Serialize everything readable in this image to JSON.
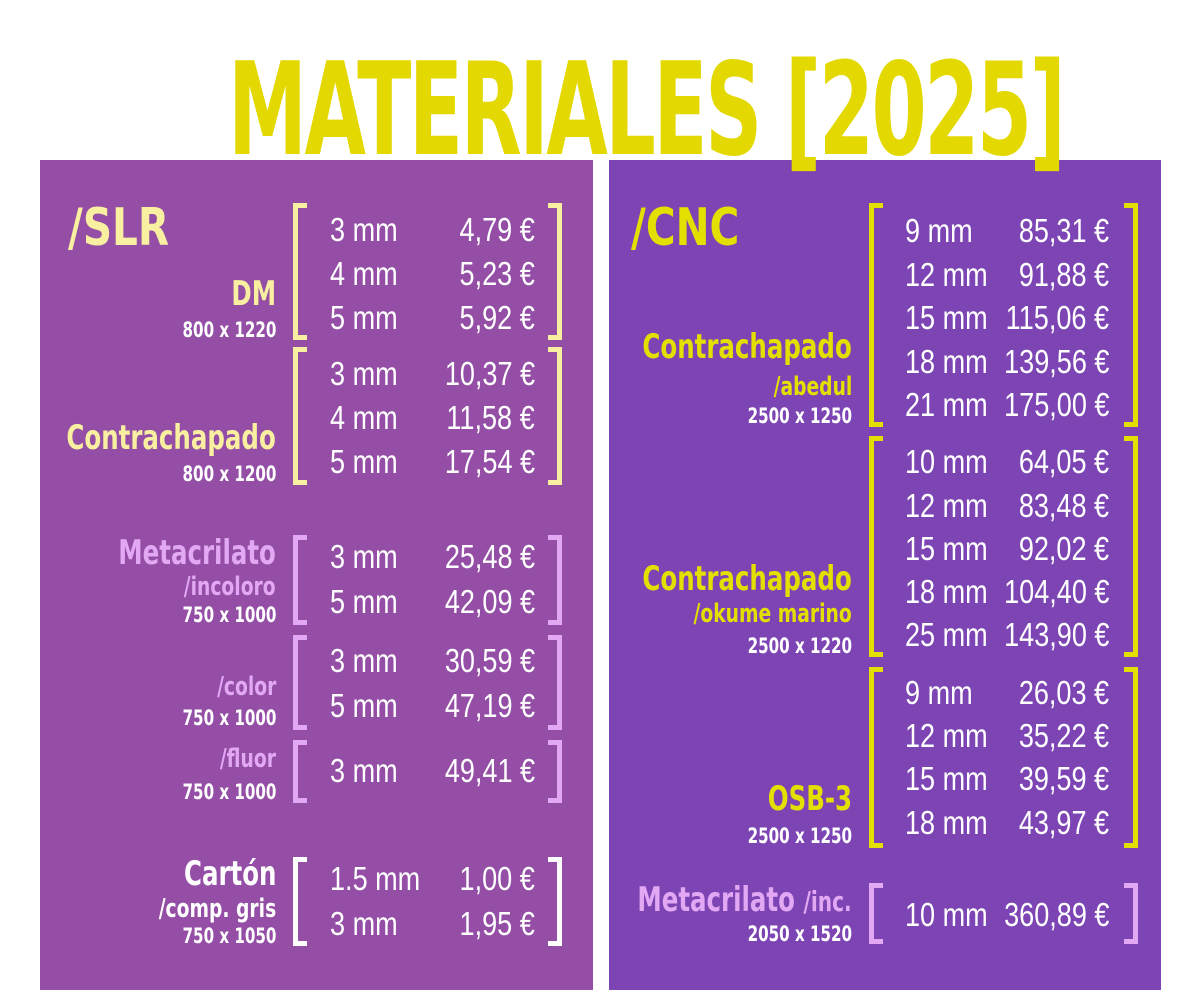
{
  "title": "MATERIALES [2025]",
  "colors": {
    "title": "#e3d900",
    "slr_bg": "#944ea6",
    "cnc_bg": "#7d45b4",
    "cream": "#f8f0a0",
    "lilac": "#e2a8f3",
    "yellow": "#e3e000",
    "white": "#ffffff"
  },
  "slr": {
    "heading": "/SLR",
    "groups": [
      {
        "name": "DM",
        "sub": "",
        "dims": "800 x 1220",
        "color": "cream",
        "rows": [
          {
            "mm": "3 mm",
            "price": "4,79 €"
          },
          {
            "mm": "4 mm",
            "price": "5,23 €"
          },
          {
            "mm": "5 mm",
            "price": "5,92 €"
          }
        ]
      },
      {
        "name": "Contrachapado",
        "sub": "",
        "dims": "800 x 1200",
        "color": "cream",
        "rows": [
          {
            "mm": "3 mm",
            "price": "10,37 €"
          },
          {
            "mm": "4 mm",
            "price": "11,58 €"
          },
          {
            "mm": "5 mm",
            "price": "17,54 €"
          }
        ]
      },
      {
        "name": "Metacrilato",
        "sub": "/incoloro",
        "dims": "750 x 1000",
        "color": "lilac",
        "rows": [
          {
            "mm": "3 mm",
            "price": "25,48 €"
          },
          {
            "mm": "5 mm",
            "price": "42,09 €"
          }
        ]
      },
      {
        "name": "",
        "sub": "/color",
        "dims": "750 x 1000",
        "color": "lilac",
        "rows": [
          {
            "mm": "3 mm",
            "price": "30,59 €"
          },
          {
            "mm": "5 mm",
            "price": "47,19 €"
          }
        ]
      },
      {
        "name": "",
        "sub": "/fluor",
        "dims": "750 x 1000",
        "color": "lilac",
        "rows": [
          {
            "mm": "3 mm",
            "price": "49,41 €"
          }
        ]
      },
      {
        "name": "Cartón",
        "sub": "/comp. gris",
        "dims": "750 x 1050",
        "color": "white",
        "rows": [
          {
            "mm": "1.5 mm",
            "price": "1,00 €"
          },
          {
            "mm": "3 mm",
            "price": "1,95 €"
          }
        ]
      }
    ]
  },
  "cnc": {
    "heading": "/CNC",
    "groups": [
      {
        "name": "Contrachapado",
        "sub": "/abedul",
        "dims": "2500 x 1250",
        "color": "yellow",
        "rows": [
          {
            "mm": "9 mm",
            "price": "85,31 €"
          },
          {
            "mm": "12 mm",
            "price": "91,88 €"
          },
          {
            "mm": "15 mm",
            "price": "115,06 €"
          },
          {
            "mm": "18 mm",
            "price": "139,56 €"
          },
          {
            "mm": "21 mm",
            "price": "175,00 €"
          }
        ]
      },
      {
        "name": "Contrachapado",
        "sub": "/okume marino",
        "dims": "2500 x 1220",
        "color": "yellow",
        "rows": [
          {
            "mm": "10 mm",
            "price": "64,05 €"
          },
          {
            "mm": "12 mm",
            "price": "83,48 €"
          },
          {
            "mm": "15 mm",
            "price": "92,02 €"
          },
          {
            "mm": "18 mm",
            "price": "104,40 €"
          },
          {
            "mm": "25 mm",
            "price": "143,90 €"
          }
        ]
      },
      {
        "name": "OSB-3",
        "sub": "",
        "dims": "2500 x 1250",
        "color": "yellow",
        "rows": [
          {
            "mm": "9 mm",
            "price": "26,03 €"
          },
          {
            "mm": "12 mm",
            "price": "35,22 €"
          },
          {
            "mm": "15 mm",
            "price": "39,59 €"
          },
          {
            "mm": "18 mm",
            "price": "43,97 €"
          }
        ]
      },
      {
        "name": "Metacrilato",
        "sub": "/inc.",
        "dims": "2050 x 1520",
        "color": "lilac",
        "rows": [
          {
            "mm": "10 mm",
            "price": "360,89 €"
          }
        ]
      }
    ]
  }
}
